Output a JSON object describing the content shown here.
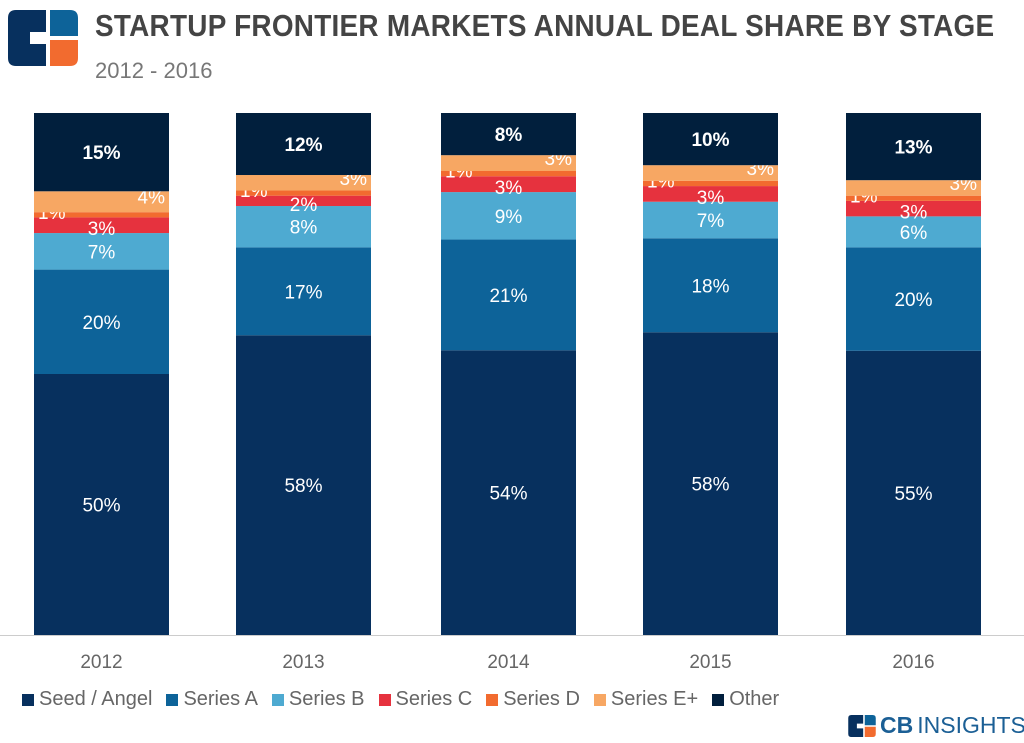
{
  "header": {
    "title": "STARTUP FRONTIER MARKETS ANNUAL DEAL SHARE BY STAGE",
    "subtitle": "2012 - 2016"
  },
  "brand": {
    "bold": "CB",
    "light": "INSIGHTS"
  },
  "colors": {
    "Seed / Angel": "#07305e",
    "Series A": "#0d6399",
    "Series B": "#4eaad1",
    "Series C": "#e6323e",
    "Series D": "#f26b2f",
    "Series E+": "#f7a763",
    "Other": "#011f3d"
  },
  "chart_data": {
    "type": "bar",
    "stacked": true,
    "title": "STARTUP FRONTIER MARKETS ANNUAL DEAL SHARE BY STAGE",
    "subtitle": "2012 - 2016",
    "categories": [
      "2012",
      "2013",
      "2014",
      "2015",
      "2016"
    ],
    "ylim": [
      0,
      100
    ],
    "grid": false,
    "legend": "bottom",
    "series": [
      {
        "name": "Seed / Angel",
        "values": [
          50,
          58,
          54,
          58,
          55
        ]
      },
      {
        "name": "Series A",
        "values": [
          20,
          17,
          21,
          18,
          20
        ]
      },
      {
        "name": "Series B",
        "values": [
          7,
          8,
          9,
          7,
          6
        ]
      },
      {
        "name": "Series C",
        "values": [
          3,
          2,
          3,
          3,
          3
        ]
      },
      {
        "name": "Series D",
        "values": [
          1,
          1,
          1,
          1,
          1
        ]
      },
      {
        "name": "Series E+",
        "values": [
          4,
          3,
          3,
          3,
          3
        ]
      },
      {
        "name": "Other",
        "values": [
          15,
          12,
          8,
          10,
          13
        ]
      }
    ]
  }
}
